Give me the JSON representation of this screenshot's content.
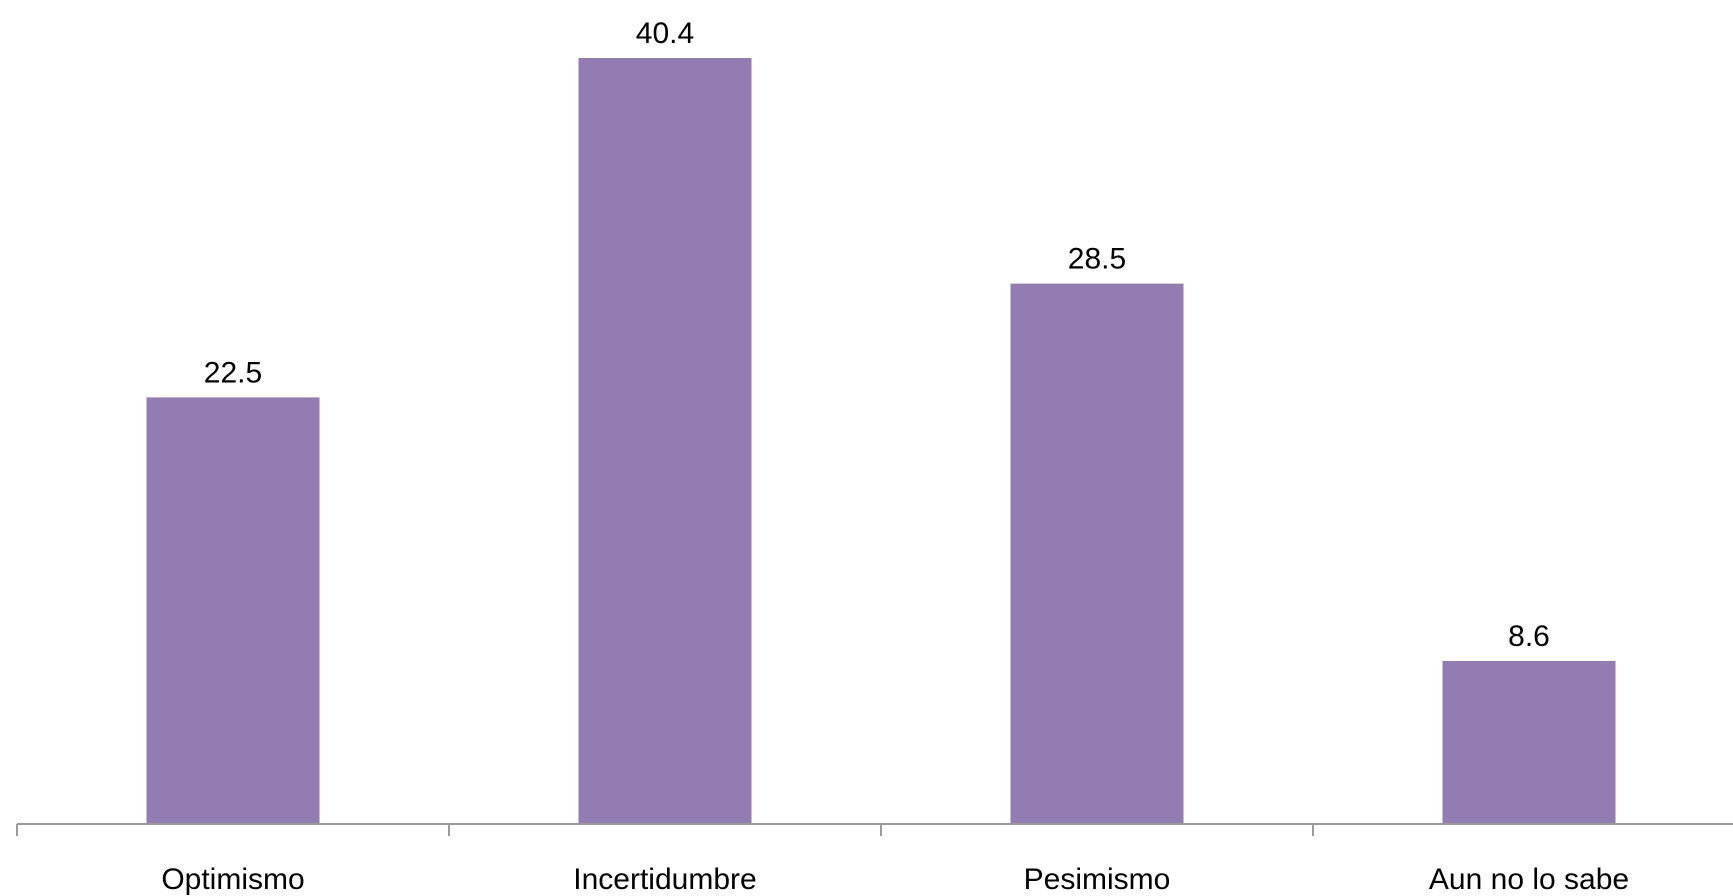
{
  "chart_data": {
    "type": "bar",
    "categories": [
      "Optimismo",
      "Incertidumbre",
      "Pesimismo",
      "Aun no lo sabe"
    ],
    "values": [
      22.5,
      40.4,
      28.5,
      8.6
    ],
    "data_labels": [
      "22.5",
      "40.4",
      "28.5",
      "8.6"
    ],
    "title": "",
    "xlabel": "",
    "ylabel": "",
    "ylim": [
      0,
      40.4
    ],
    "grid": false,
    "legend": "none",
    "colors": {
      "bar": "#937cb2",
      "axis": "#9a9a9a",
      "text": "#000000"
    }
  }
}
